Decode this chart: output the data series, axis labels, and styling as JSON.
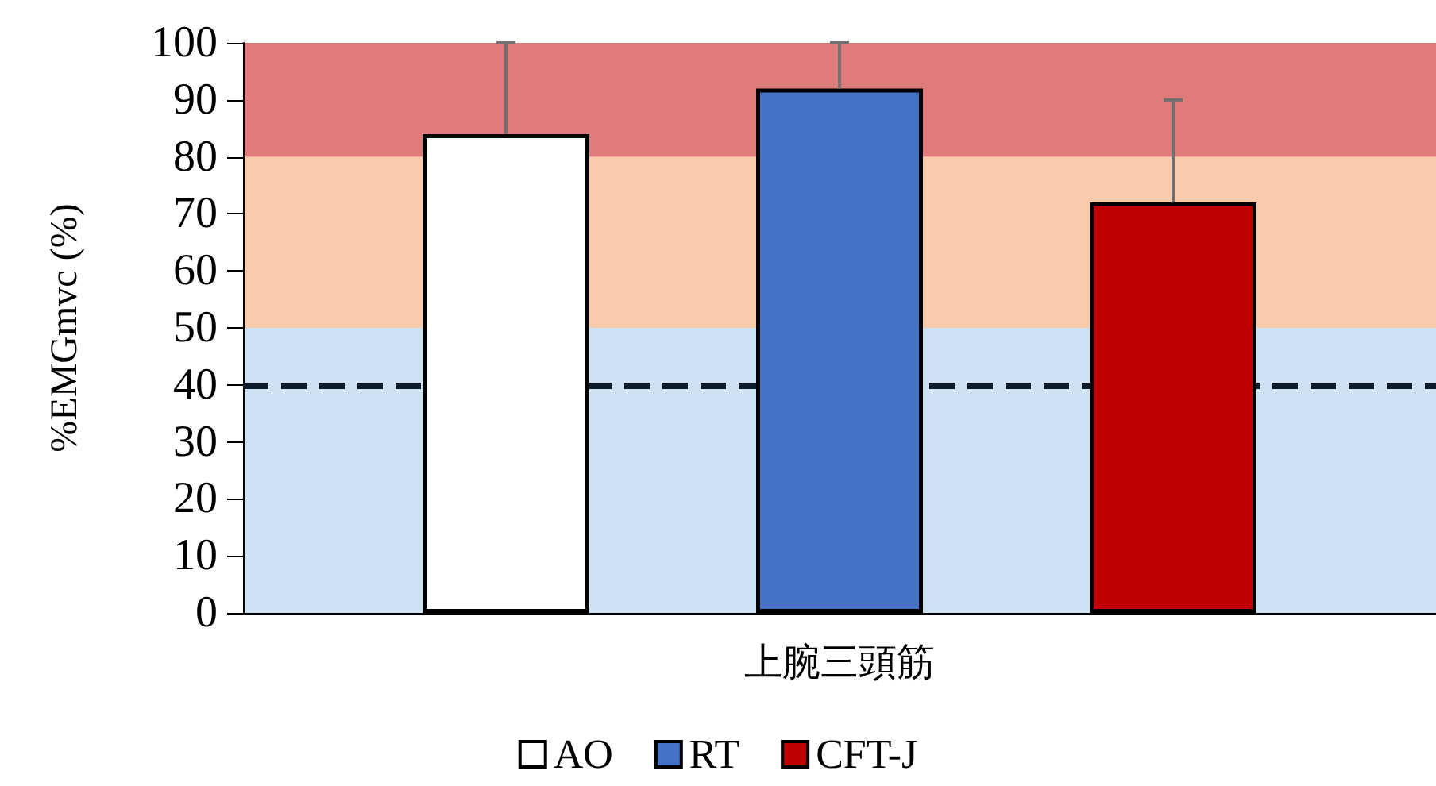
{
  "chart_data": {
    "type": "bar",
    "ylabel": "%EMGmvc (%)",
    "categories": [
      "上腕三頭筋"
    ],
    "series": [
      {
        "name": "AO",
        "color": "#ffffff",
        "values": [
          84
        ],
        "errors": [
          [
            84,
            100
          ]
        ]
      },
      {
        "name": "RT",
        "color": "#4472c4",
        "values": [
          92
        ],
        "errors": [
          [
            92,
            100
          ]
        ]
      },
      {
        "name": "CFT-J",
        "color": "#c00000",
        "values": [
          72
        ],
        "errors": [
          [
            72,
            90
          ]
        ]
      }
    ],
    "ylim": [
      0,
      100
    ],
    "yticks": [
      0,
      10,
      20,
      30,
      40,
      50,
      60,
      70,
      80,
      90,
      100
    ],
    "bands": [
      {
        "axis": "y",
        "from": 0,
        "to": 50,
        "color": "#cfe2f3"
      },
      {
        "axis": "y",
        "from": 50,
        "to": 80,
        "color": "#f8cbad"
      },
      {
        "axis": "y",
        "from": 80,
        "to": 100,
        "color": "#e07b7b"
      }
    ],
    "ref_lines": [
      {
        "axis": "y",
        "value": 40,
        "color": "#0d1b2a",
        "line_style": "dashed"
      }
    ],
    "legend": "bottom"
  }
}
